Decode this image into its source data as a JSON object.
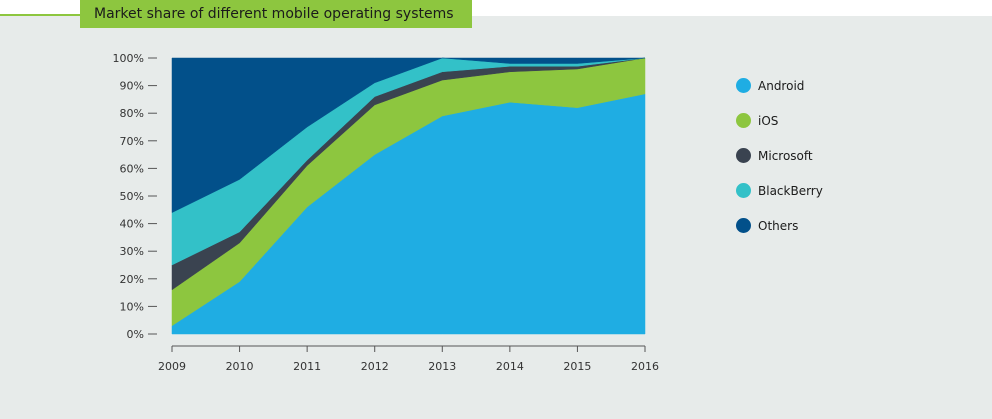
{
  "title": "Market share of different mobile operating systems",
  "chart_data": {
    "type": "area",
    "stacked": true,
    "title": "Market share of different mobile operating systems",
    "x": [
      "2009",
      "2010",
      "2011",
      "2012",
      "2013",
      "2014",
      "2015",
      "2016"
    ],
    "y_ticks": [
      "0%",
      "10%",
      "20%",
      "30%",
      "40%",
      "50%",
      "60%",
      "70%",
      "80%",
      "90%",
      "100%"
    ],
    "ylim": [
      0,
      100
    ],
    "xlabel": "",
    "ylabel": "",
    "legend_position": "right",
    "grid": false,
    "series": [
      {
        "name": "Android",
        "color": "#1fade3",
        "values": [
          3,
          19,
          46,
          65,
          79,
          84,
          82,
          87
        ]
      },
      {
        "name": "iOS",
        "color": "#8dc63f",
        "values": [
          13,
          14,
          15,
          18,
          13,
          11,
          14,
          13
        ]
      },
      {
        "name": "Microsoft",
        "color": "#3a4350",
        "values": [
          9,
          4,
          2,
          3,
          3,
          2,
          1,
          0
        ]
      },
      {
        "name": "BlackBerry",
        "color": "#33c1c8",
        "values": [
          19,
          19,
          12,
          5,
          5,
          1,
          1,
          0
        ]
      },
      {
        "name": "Others",
        "color": "#02508a",
        "values": [
          56,
          44,
          25,
          9,
          0,
          2,
          2,
          0
        ]
      }
    ]
  }
}
